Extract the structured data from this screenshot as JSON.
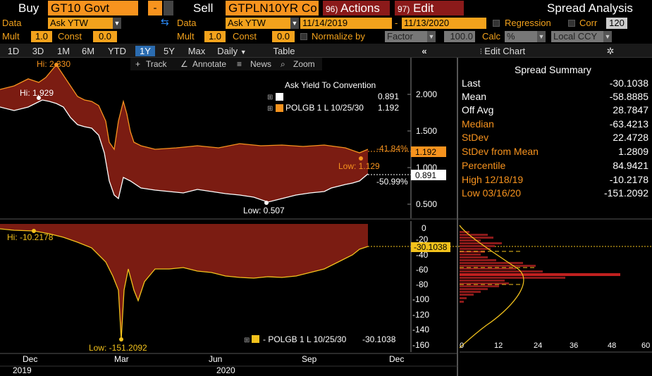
{
  "toolbar1": {
    "buy_label": "Buy",
    "buy_ticker": "GT10 Govt",
    "minus_label": "-",
    "sell_label": "Sell",
    "sell_ticker": "GTPLN10YR Co",
    "actions_num": "96)",
    "actions_label": "Actions",
    "edit_num": "97)",
    "edit_label": "Edit",
    "title": "Spread Analysis"
  },
  "toolbar2": {
    "data_label_1": "Data",
    "data_value_1": "Ask YTW",
    "data_label_2": "Data",
    "data_value_2": "Ask YTW",
    "start_date": "11/14/2019",
    "dash": "-",
    "end_date": "11/13/2020",
    "regression_label": "Regression",
    "corr_label": "Corr",
    "corr_value": "120"
  },
  "toolbar3": {
    "mult_label_1": "Mult",
    "mult_value_1": "1.0",
    "const_label_1": "Const",
    "const_value_1": "0.0",
    "mult_label_2": "Mult",
    "mult_value_2": "1.0",
    "const_label_2": "Const",
    "const_value_2": "0.0",
    "normalize_label": "Normalize by",
    "normalize_value": "Factor",
    "normalize_num": "100.0",
    "calc_label": "Calc",
    "calc_value": "%",
    "ccy_value": "Local CCY"
  },
  "tabs": {
    "items": [
      "1D",
      "3D",
      "1M",
      "6M",
      "YTD",
      "1Y",
      "5Y",
      "Max"
    ],
    "selected": "1Y",
    "daily_label": "Daily",
    "table_label": "Table",
    "edit_chart_label": "Edit Chart"
  },
  "chart_tools": {
    "track": "Track",
    "annotate": "Annotate",
    "news": "News",
    "zoom": "Zoom"
  },
  "upper_legend": {
    "title": "Ask Yield To Convention",
    "series1_value": "0.891",
    "series2_name": "POLGB 1 L 10/25/30",
    "series2_value": "1.192"
  },
  "upper_labels": {
    "hi_orange": "Hi: 2.330",
    "hi_white": "Hi: 1.929",
    "low_orange": "Low: 1.129",
    "low_white": "Low: 0.507",
    "pct_orange": "-41.84%",
    "pct_white": "-50.99%",
    "last_orange": "1.192",
    "last_white": "0.891"
  },
  "upper_axis": [
    "2.000",
    "1.500",
    "1.000",
    "0.500"
  ],
  "lower_legend": {
    "series_name": "- POLGB 1 L 10/25/30",
    "series_value": "-30.1038"
  },
  "lower_labels": {
    "hi": "Hi: -10.2178",
    "low": "Low: -151.2092",
    "last": "-30.1038"
  },
  "lower_axis": [
    "0",
    "-20",
    "-40",
    "-60",
    "-80",
    "-100",
    "-120",
    "-140",
    "-160"
  ],
  "x_axis": {
    "months": [
      "Dec",
      "Mar",
      "Jun",
      "Sep",
      "Dec"
    ],
    "years": [
      "2019",
      "2020"
    ]
  },
  "hist_axis": [
    "0",
    "12",
    "24",
    "36",
    "48",
    "60"
  ],
  "summary": {
    "title": "Spread Summary",
    "rows": [
      {
        "k": "Last",
        "v": "-30.1038"
      },
      {
        "k": "Mean",
        "v": "-58.8885"
      },
      {
        "k": "Off Avg",
        "v": "28.7847"
      },
      {
        "k": "Median",
        "v": "-63.4213"
      },
      {
        "k": "StDev",
        "v": "22.4728"
      },
      {
        "k": "StDev from Mean",
        "v": "1.2809"
      },
      {
        "k": "Percentile",
        "v": "84.9421"
      },
      {
        "k": "High 12/18/19",
        "v": "-10.2178"
      },
      {
        "k": "Low 03/16/20",
        "v": "-151.2092"
      }
    ]
  },
  "colors": {
    "accent_orange": "#f7931e",
    "fill_red": "#8b1a1a",
    "gold": "#f3c21c"
  }
}
